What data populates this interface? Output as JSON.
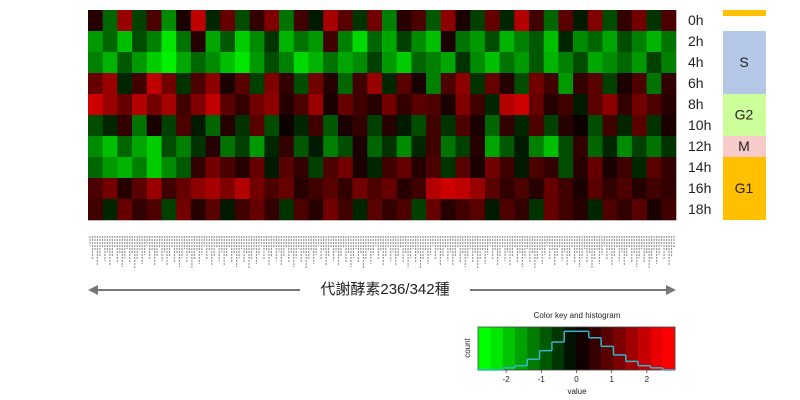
{
  "chart_data": {
    "type": "heatmap",
    "rows": [
      "0h",
      "2h",
      "4h",
      "6h",
      "8h",
      "10h",
      "12h",
      "14h",
      "16h",
      "18h"
    ],
    "values": [
      [
        0.3,
        -0.8,
        1.2,
        -0.5,
        0.6,
        -1.1,
        0.2,
        1.5,
        -0.3,
        0.8,
        -0.6,
        0.4,
        1.0,
        -0.9,
        0.5,
        -0.2,
        1.3,
        0.7,
        -0.4,
        0.9,
        -1.0,
        0.3,
        0.6,
        -0.7,
        1.1,
        0.2,
        -0.5,
        0.8,
        -0.3,
        1.4,
        0.5,
        -0.8,
        0.7,
        -0.2,
        1.0,
        -0.6,
        0.4,
        0.9,
        -0.4,
        0.6
      ],
      [
        -1.2,
        -0.8,
        -1.5,
        -0.6,
        -1.0,
        -1.8,
        -0.9,
        0.3,
        -1.3,
        -0.7,
        -1.6,
        -1.1,
        -0.4,
        -1.4,
        -0.9,
        -1.2,
        0.5,
        -1.0,
        -1.7,
        -0.8,
        -1.3,
        -0.5,
        -1.1,
        -1.5,
        0.2,
        -0.9,
        -1.2,
        -0.6,
        -1.4,
        -1.0,
        -0.7,
        -1.5,
        -0.3,
        -1.1,
        -0.8,
        -1.3,
        -0.6,
        -1.0,
        -1.4,
        -0.9
      ],
      [
        -1.0,
        -1.4,
        -0.7,
        -1.2,
        -1.6,
        -1.9,
        -1.3,
        -0.8,
        -1.1,
        -1.5,
        -1.8,
        -1.2,
        -0.6,
        -1.0,
        -1.7,
        -1.4,
        -0.9,
        -1.3,
        -1.1,
        -0.5,
        -1.2,
        -1.6,
        -0.8,
        -1.0,
        -1.3,
        -0.4,
        -1.1,
        -1.5,
        -0.9,
        -1.2,
        -0.7,
        -1.4,
        -1.0,
        -0.6,
        -1.3,
        -1.1,
        -0.8,
        -1.2,
        -0.5,
        -1.0
      ],
      [
        0.8,
        1.2,
        -0.3,
        0.5,
        1.5,
        0.9,
        -0.4,
        0.6,
        1.1,
        0.2,
        0.7,
        -0.5,
        1.0,
        0.4,
        -0.6,
        0.9,
        0.3,
        -0.8,
        0.5,
        1.2,
        -0.3,
        0.7,
        0.2,
        -1.0,
        0.6,
        1.1,
        -0.4,
        0.8,
        0.3,
        -0.6,
        0.9,
        0.5,
        -1.2,
        0.4,
        0.7,
        -0.5,
        0.2,
        0.6,
        -0.9,
        0.4
      ],
      [
        1.6,
        1.2,
        0.8,
        1.4,
        0.9,
        1.3,
        0.5,
        1.0,
        1.5,
        0.7,
        0.4,
        0.9,
        1.1,
        0.3,
        0.6,
        1.2,
        0.2,
        0.8,
        0.5,
        0.3,
        0.9,
        0.4,
        0.7,
        0.6,
        0.2,
        1.0,
        0.5,
        -0.3,
        1.4,
        1.6,
        0.8,
        0.3,
        0.5,
        -0.2,
        0.7,
        1.1,
        0.4,
        0.9,
        0.6,
        0.3
      ],
      [
        -0.6,
        -0.3,
        0.4,
        -0.9,
        0.2,
        -0.5,
        0.6,
        -0.2,
        -0.8,
        0.3,
        -0.4,
        0.7,
        -0.6,
        0.1,
        -0.3,
        0.5,
        -0.7,
        0.2,
        0.4,
        -0.5,
        0.3,
        -0.2,
        -0.6,
        0.5,
        -0.4,
        0.6,
        0.2,
        -0.8,
        0.4,
        -0.3,
        0.6,
        -0.5,
        0.3,
        0.1,
        -0.6,
        0.5,
        -0.3,
        0.7,
        -0.4,
        0.2
      ],
      [
        -1.1,
        -1.5,
        -0.8,
        -1.3,
        -1.6,
        -0.6,
        -1.0,
        -0.4,
        0.3,
        -0.9,
        -0.5,
        -1.2,
        -0.3,
        0.4,
        -0.7,
        -0.2,
        -1.0,
        -0.6,
        0.2,
        -0.8,
        -0.4,
        -1.1,
        -0.3,
        0.5,
        -0.9,
        -0.5,
        0.3,
        -1.3,
        -0.7,
        -0.2,
        -1.0,
        -1.5,
        -0.6,
        0.4,
        -0.8,
        -0.3,
        -1.1,
        -0.5,
        -0.9,
        -0.4
      ],
      [
        -0.8,
        -1.2,
        -1.4,
        -1.0,
        -1.6,
        -1.1,
        -0.7,
        0.4,
        0.9,
        0.6,
        0.3,
        0.8,
        -0.2,
        0.7,
        0.4,
        -0.5,
        0.6,
        0.9,
        0.2,
        -0.3,
        0.5,
        0.8,
        0.3,
        0.6,
        -0.4,
        0.7,
        0.2,
        0.9,
        0.5,
        -0.2,
        0.6,
        0.4,
        -0.6,
        0.3,
        0.8,
        0.2,
        0.5,
        -0.3,
        0.7,
        0.4
      ],
      [
        0.6,
        0.9,
        0.3,
        0.7,
        1.2,
        0.5,
        0.8,
        1.1,
        1.3,
        1.0,
        1.4,
        0.9,
        0.6,
        0.8,
        0.3,
        0.5,
        0.7,
        0.4,
        0.9,
        0.6,
        0.8,
        0.3,
        0.5,
        1.4,
        1.6,
        1.5,
        1.2,
        0.7,
        0.4,
        0.6,
        0.3,
        0.8,
        0.5,
        0.2,
        0.7,
        0.4,
        0.6,
        0.3,
        0.5,
        0.4
      ],
      [
        0.5,
        -0.3,
        0.8,
        0.4,
        0.6,
        -0.5,
        0.9,
        0.3,
        0.7,
        -0.2,
        0.5,
        0.8,
        0.4,
        -0.4,
        0.6,
        0.3,
        0.9,
        0.5,
        -0.3,
        0.7,
        0.4,
        0.6,
        -0.5,
        0.8,
        0.3,
        0.5,
        0.7,
        -0.2,
        0.6,
        0.4,
        -0.4,
        0.8,
        0.5,
        0.3,
        -0.3,
        0.6,
        0.4,
        0.7,
        0.2,
        0.5
      ]
    ],
    "colors": {
      "low": "#00ff00",
      "mid": "#000000",
      "high": "#ff0000"
    },
    "phases": [
      {
        "label": "S",
        "color": "#b4c7e7",
        "from": "2h",
        "to": "6h"
      },
      {
        "label": "G2",
        "color": "#ccff99",
        "from": "8h",
        "to": "10h"
      },
      {
        "label": "M",
        "color": "#f8cbcb",
        "from": "12h",
        "to": "12h"
      },
      {
        "label": "G1",
        "color": "#ffc000",
        "from": "14h",
        "to": "18h"
      }
    ],
    "x_label": "代謝酵素236/342種",
    "color_key": {
      "title": "Color key and histogram",
      "x_label": "value",
      "y_label": "count",
      "xlim": [
        -2.8,
        2.8
      ],
      "xticks": [
        -2,
        -1,
        0,
        1,
        2
      ],
      "bins": [
        -2.8,
        -2.45,
        -2.1,
        -1.75,
        -1.4,
        -1.05,
        -0.7,
        -0.35,
        0,
        0.35,
        0.7,
        1.05,
        1.4,
        1.75,
        2.1,
        2.45,
        2.8
      ],
      "counts": [
        0,
        0,
        1,
        2,
        5,
        9,
        13,
        18,
        18,
        15,
        11,
        7,
        4,
        2,
        1,
        0
      ],
      "ylim": [
        0,
        20
      ],
      "line_color": "#33b5cc"
    }
  }
}
